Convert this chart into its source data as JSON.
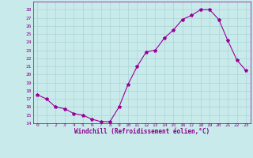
{
  "x": [
    0,
    1,
    2,
    3,
    4,
    5,
    6,
    7,
    8,
    9,
    10,
    11,
    12,
    13,
    14,
    15,
    16,
    17,
    18,
    19,
    20,
    21,
    22,
    23
  ],
  "y": [
    17.5,
    17.0,
    16.0,
    15.8,
    15.2,
    15.0,
    14.5,
    14.2,
    14.2,
    16.0,
    18.8,
    21.0,
    22.8,
    23.0,
    24.5,
    25.5,
    26.8,
    27.3,
    28.0,
    28.0,
    26.8,
    24.2,
    21.8,
    20.5
  ],
  "line_color": "#990099",
  "marker": "*",
  "marker_size": 3,
  "xlabel": "Windchill (Refroidissement éolien,°C)",
  "xlim": [
    -0.5,
    23.5
  ],
  "ylim": [
    14,
    29
  ],
  "yticks": [
    14,
    15,
    16,
    17,
    18,
    19,
    20,
    21,
    22,
    23,
    24,
    25,
    26,
    27,
    28
  ],
  "xticks": [
    0,
    1,
    2,
    3,
    4,
    5,
    6,
    7,
    8,
    9,
    10,
    11,
    12,
    13,
    14,
    15,
    16,
    17,
    18,
    19,
    20,
    21,
    22,
    23
  ],
  "bg_color": "#c8eaea",
  "grid_color": "#b0d8d8",
  "tick_color": "#880088",
  "axis_label_color": "#880088"
}
